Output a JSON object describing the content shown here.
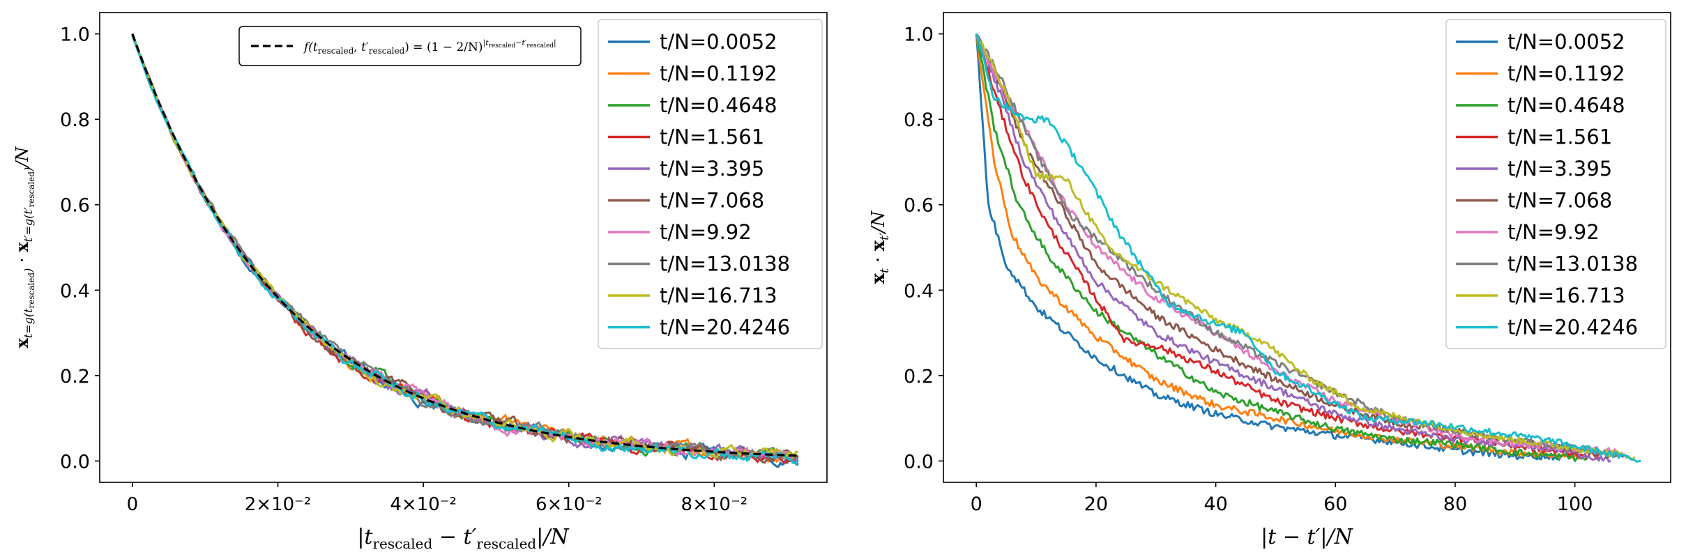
{
  "chart_data": [
    {
      "type": "line",
      "panel": "left",
      "xlabel": "|t_rescaled − t′_rescaled|/N",
      "ylabel": "x_{t=g(t_rescaled)} · x_{t′=g(t′_rescaled)}/N",
      "xlim": [
        -0.0045,
        0.0955
      ],
      "ylim": [
        -0.05,
        1.05
      ],
      "xticks": [
        0,
        0.02,
        0.04,
        0.06,
        0.08
      ],
      "xtick_labels": [
        "0",
        "2×10⁻²",
        "4×10⁻²",
        "6×10⁻²",
        "8×10⁻²"
      ],
      "yticks": [
        0.0,
        0.2,
        0.4,
        0.6,
        0.8,
        1.0
      ],
      "ytick_labels": [
        "0.0",
        "0.2",
        "0.4",
        "0.6",
        "0.8",
        "1.0"
      ],
      "series_x_max": 0.0915,
      "reference_curve": {
        "label": "f(t_rescaled, t′_rescaled) = (1 − 2/N)^{|t_rescaled − t′_rescaled|}",
        "style": "dashed",
        "color": "#000000",
        "decay_rate_per_unit_x": 48
      },
      "series": [
        {
          "name": "t/N=0.0052",
          "color": "#1f77b4"
        },
        {
          "name": "t/N=0.1192",
          "color": "#ff7f0e"
        },
        {
          "name": "t/N=0.4648",
          "color": "#2ca02c"
        },
        {
          "name": "t/N=1.561",
          "color": "#d62728"
        },
        {
          "name": "t/N=3.395",
          "color": "#9467bd"
        },
        {
          "name": "t/N=7.068",
          "color": "#8c564b"
        },
        {
          "name": "t/N=9.92",
          "color": "#e377c2"
        },
        {
          "name": "t/N=13.0138",
          "color": "#7f7f7f"
        },
        {
          "name": "t/N=16.713",
          "color": "#bcbd22"
        },
        {
          "name": "t/N=20.4246",
          "color": "#17becf"
        }
      ]
    },
    {
      "type": "line",
      "panel": "right",
      "xlabel": "|t − t′|/N",
      "ylabel": "x_t · x_t′/N",
      "xlim": [
        -5.5,
        116
      ],
      "ylim": [
        -0.05,
        1.05
      ],
      "xticks": [
        0,
        20,
        40,
        60,
        80,
        100
      ],
      "xtick_labels": [
        "0",
        "20",
        "40",
        "60",
        "80",
        "100"
      ],
      "yticks": [
        0.0,
        0.2,
        0.4,
        0.6,
        0.8,
        1.0
      ],
      "ytick_labels": [
        "0.0",
        "0.2",
        "0.4",
        "0.6",
        "0.8",
        "1.0"
      ],
      "series": [
        {
          "name": "t/N=0.0052",
          "color": "#1f77b4",
          "x_end": 100,
          "points": [
            [
              0,
              1.0
            ],
            [
              2,
              0.6
            ],
            [
              5,
              0.46
            ],
            [
              10,
              0.36
            ],
            [
              20,
              0.24
            ],
            [
              30,
              0.155
            ],
            [
              40,
              0.11
            ],
            [
              50,
              0.08
            ],
            [
              60,
              0.06
            ],
            [
              70,
              0.045
            ],
            [
              80,
              0.025
            ],
            [
              90,
              0.012
            ],
            [
              100,
              0.01
            ]
          ]
        },
        {
          "name": "t/N=0.1192",
          "color": "#ff7f0e",
          "x_end": 101,
          "points": [
            [
              0,
              1.0
            ],
            [
              3,
              0.7
            ],
            [
              6,
              0.53
            ],
            [
              10,
              0.43
            ],
            [
              20,
              0.29
            ],
            [
              30,
              0.19
            ],
            [
              40,
              0.13
            ],
            [
              50,
              0.1
            ],
            [
              60,
              0.07
            ],
            [
              70,
              0.05
            ],
            [
              80,
              0.035
            ],
            [
              90,
              0.02
            ],
            [
              101,
              0.01
            ]
          ]
        },
        {
          "name": "t/N=0.4648",
          "color": "#2ca02c",
          "x_end": 102,
          "points": [
            [
              0,
              1.0
            ],
            [
              3,
              0.78
            ],
            [
              7,
              0.6
            ],
            [
              12,
              0.48
            ],
            [
              20,
              0.35
            ],
            [
              30,
              0.25
            ],
            [
              40,
              0.16
            ],
            [
              50,
              0.115
            ],
            [
              60,
              0.075
            ],
            [
              70,
              0.05
            ],
            [
              80,
              0.04
            ],
            [
              90,
              0.02
            ],
            [
              102,
              0.005
            ]
          ]
        },
        {
          "name": "t/N=1.561",
          "color": "#d62728",
          "x_end": 104,
          "points": [
            [
              0,
              1.0
            ],
            [
              4,
              0.82
            ],
            [
              8,
              0.66
            ],
            [
              12,
              0.55
            ],
            [
              20,
              0.38
            ],
            [
              25,
              0.28
            ],
            [
              30,
              0.27
            ],
            [
              40,
              0.21
            ],
            [
              50,
              0.14
            ],
            [
              60,
              0.1
            ],
            [
              70,
              0.07
            ],
            [
              80,
              0.055
            ],
            [
              90,
              0.035
            ],
            [
              104,
              0.01
            ]
          ]
        },
        {
          "name": "t/N=3.395",
          "color": "#9467bd",
          "x_end": 106,
          "points": [
            [
              0,
              1.0
            ],
            [
              4,
              0.86
            ],
            [
              8,
              0.7
            ],
            [
              14,
              0.55
            ],
            [
              20,
              0.42
            ],
            [
              30,
              0.3
            ],
            [
              40,
              0.23
            ],
            [
              50,
              0.17
            ],
            [
              60,
              0.11
            ],
            [
              70,
              0.075
            ],
            [
              80,
              0.05
            ],
            [
              90,
              0.04
            ],
            [
              100,
              0.02
            ],
            [
              106,
              0.0
            ]
          ]
        },
        {
          "name": "t/N=7.068",
          "color": "#8c564b",
          "x_end": 107,
          "points": [
            [
              0,
              1.0
            ],
            [
              4,
              0.88
            ],
            [
              8,
              0.74
            ],
            [
              14,
              0.6
            ],
            [
              20,
              0.46
            ],
            [
              30,
              0.34
            ],
            [
              40,
              0.26
            ],
            [
              50,
              0.19
            ],
            [
              60,
              0.13
            ],
            [
              70,
              0.09
            ],
            [
              80,
              0.07
            ],
            [
              90,
              0.045
            ],
            [
              100,
              0.03
            ],
            [
              107,
              0.01
            ]
          ]
        },
        {
          "name": "t/N=9.92",
          "color": "#e377c2",
          "x_end": 108,
          "points": [
            [
              0,
              1.0
            ],
            [
              4,
              0.88
            ],
            [
              9,
              0.76
            ],
            [
              14,
              0.62
            ],
            [
              20,
              0.5
            ],
            [
              30,
              0.38
            ],
            [
              40,
              0.3
            ],
            [
              50,
              0.21
            ],
            [
              60,
              0.14
            ],
            [
              70,
              0.1
            ],
            [
              80,
              0.06
            ],
            [
              90,
              0.04
            ],
            [
              100,
              0.03
            ],
            [
              108,
              0.02
            ]
          ]
        },
        {
          "name": "t/N=13.0138",
          "color": "#7f7f7f",
          "x_end": 109,
          "points": [
            [
              0,
              1.0
            ],
            [
              4,
              0.9
            ],
            [
              10,
              0.72
            ],
            [
              16,
              0.57
            ],
            [
              22,
              0.5
            ],
            [
              30,
              0.4
            ],
            [
              40,
              0.3
            ],
            [
              50,
              0.23
            ],
            [
              60,
              0.16
            ],
            [
              70,
              0.1
            ],
            [
              80,
              0.07
            ],
            [
              90,
              0.05
            ],
            [
              100,
              0.03
            ],
            [
              109,
              0.01
            ]
          ]
        },
        {
          "name": "t/N=16.713",
          "color": "#bcbd22",
          "x_end": 110,
          "points": [
            [
              0,
              1.0
            ],
            [
              5,
              0.86
            ],
            [
              10,
              0.67
            ],
            [
              15,
              0.66
            ],
            [
              22,
              0.5
            ],
            [
              30,
              0.42
            ],
            [
              40,
              0.33
            ],
            [
              48,
              0.28
            ],
            [
              55,
              0.2
            ],
            [
              65,
              0.12
            ],
            [
              75,
              0.09
            ],
            [
              85,
              0.06
            ],
            [
              95,
              0.04
            ],
            [
              110,
              0.01
            ]
          ]
        },
        {
          "name": "t/N=20.4246",
          "color": "#17becf",
          "x_end": 111,
          "points": [
            [
              0,
              1.0
            ],
            [
              3,
              0.85
            ],
            [
              8,
              0.8
            ],
            [
              12,
              0.8
            ],
            [
              18,
              0.68
            ],
            [
              24,
              0.53
            ],
            [
              32,
              0.37
            ],
            [
              40,
              0.32
            ],
            [
              45,
              0.3
            ],
            [
              50,
              0.21
            ],
            [
              58,
              0.15
            ],
            [
              65,
              0.1
            ],
            [
              75,
              0.09
            ],
            [
              85,
              0.07
            ],
            [
              95,
              0.05
            ],
            [
              111,
              0.0
            ]
          ]
        }
      ]
    }
  ]
}
